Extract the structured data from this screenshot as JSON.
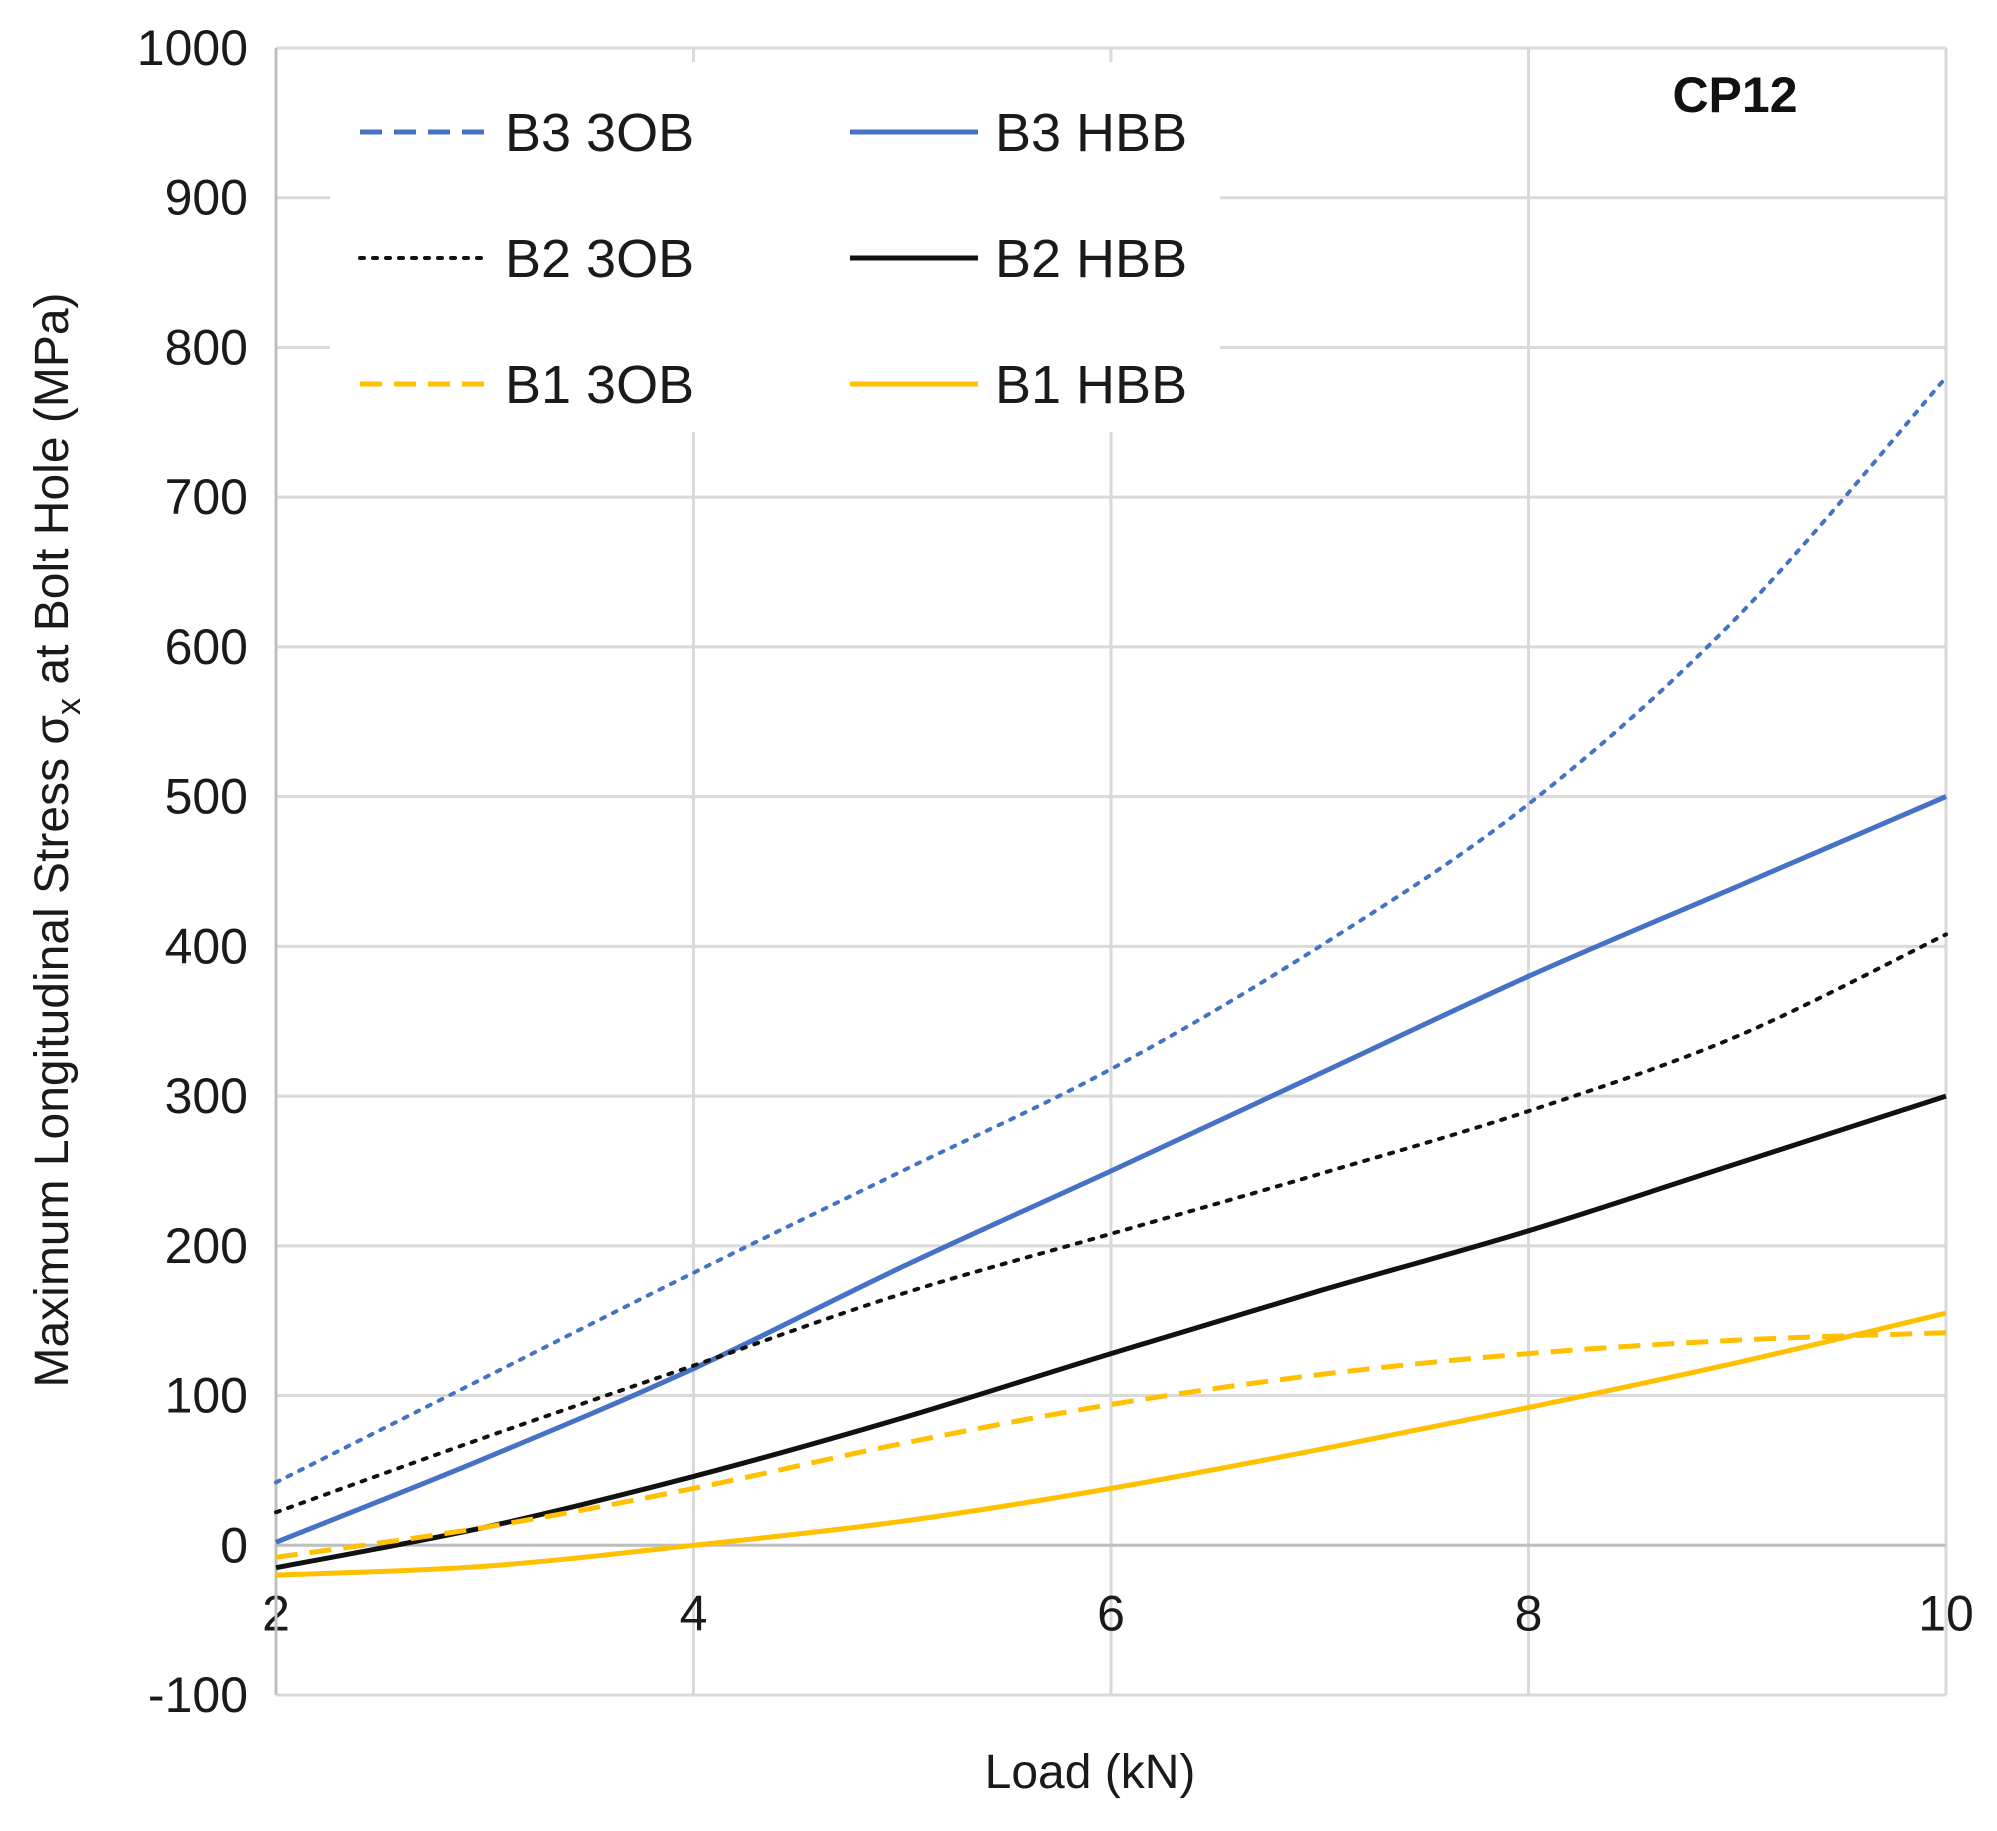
{
  "chart_data": {
    "type": "line",
    "annotation": "CP12",
    "xlabel": "Load (kN)",
    "ylabel": "Maximum Longitudinal Stress σ",
    "ylabel_sub": "x",
    "ylabel_suffix": " at Bolt Hole (MPa)",
    "xlim": [
      2,
      10
    ],
    "ylim": [
      -100,
      1000
    ],
    "xticks": [
      "2",
      "4",
      "6",
      "8",
      "10"
    ],
    "yticks": [
      "-100",
      "0",
      "100",
      "200",
      "300",
      "400",
      "500",
      "600",
      "700",
      "800",
      "900",
      "1000"
    ],
    "grid": true,
    "legend_position": "top-left",
    "x": [
      2,
      3,
      4,
      5,
      6,
      7,
      8,
      9,
      10
    ],
    "series": [
      {
        "name": "B3 3OB",
        "color": "#4472C4",
        "style": "dotted",
        "legend_style": "dashed",
        "values": [
          42,
          112,
          182,
          250,
          318,
          400,
          495,
          620,
          780
        ]
      },
      {
        "name": "B3 HBB",
        "color": "#4472C4",
        "style": "solid",
        "legend_style": "solid",
        "values": [
          2,
          58,
          118,
          186,
          250,
          315,
          380,
          440,
          500
        ]
      },
      {
        "name": "B2 3OB",
        "color": "#111111",
        "style": "dotted",
        "legend_style": "dotted",
        "values": [
          22,
          72,
          120,
          168,
          208,
          248,
          290,
          340,
          408
        ]
      },
      {
        "name": "B2 HBB",
        "color": "#111111",
        "style": "solid",
        "legend_style": "solid",
        "values": [
          -15,
          12,
          46,
          85,
          128,
          170,
          210,
          255,
          300
        ]
      },
      {
        "name": "B1 3OB",
        "color": "#FFC000",
        "style": "dashed",
        "legend_style": "dashed",
        "values": [
          -8,
          12,
          38,
          68,
          94,
          114,
          128,
          137,
          142
        ]
      },
      {
        "name": "B1 HBB",
        "color": "#FFC000",
        "style": "solid",
        "legend_style": "solid",
        "values": [
          -20,
          -14,
          0,
          16,
          38,
          64,
          92,
          122,
          155
        ]
      }
    ]
  }
}
